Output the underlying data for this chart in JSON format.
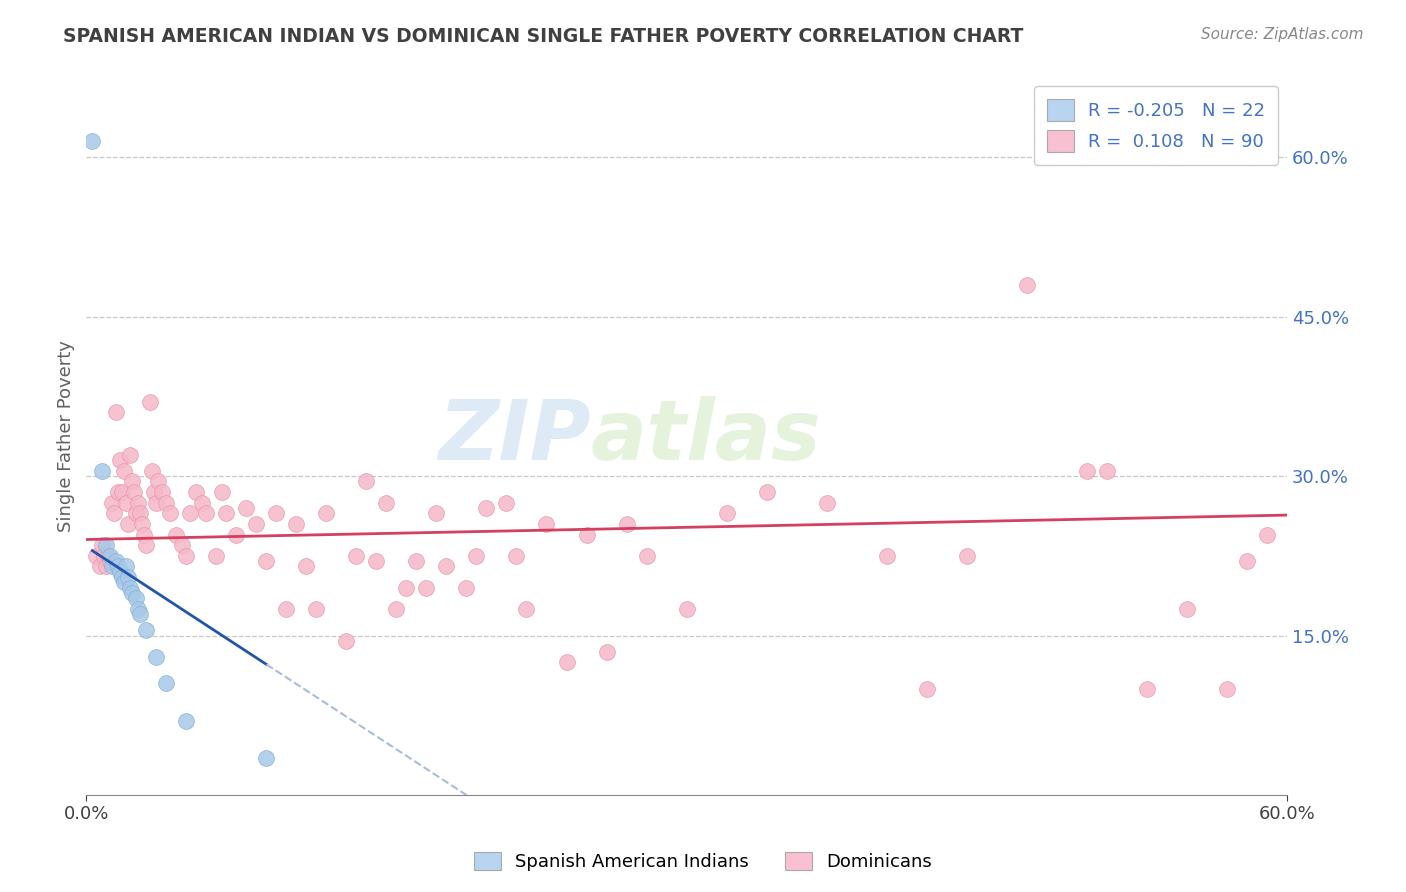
{
  "title": "SPANISH AMERICAN INDIAN VS DOMINICAN SINGLE FATHER POVERTY CORRELATION CHART",
  "source": "Source: ZipAtlas.com",
  "ylabel": "Single Father Poverty",
  "right_yticks": [
    "60.0%",
    "45.0%",
    "30.0%",
    "15.0%"
  ],
  "right_ytick_vals": [
    0.6,
    0.45,
    0.3,
    0.15
  ],
  "xmin": 0.0,
  "xmax": 0.6,
  "ymin": 0.0,
  "ymax": 0.675,
  "legend_labels": [
    "Spanish American Indians",
    "Dominicans"
  ],
  "r_blue": -0.205,
  "r_pink": 0.108,
  "n_blue": 22,
  "n_pink": 90,
  "watermark_zip": "ZIP",
  "watermark_atlas": "atlas",
  "blue_scatter": [
    [
      0.003,
      0.615
    ],
    [
      0.008,
      0.305
    ],
    [
      0.01,
      0.235
    ],
    [
      0.012,
      0.225
    ],
    [
      0.013,
      0.215
    ],
    [
      0.015,
      0.22
    ],
    [
      0.016,
      0.215
    ],
    [
      0.017,
      0.21
    ],
    [
      0.018,
      0.205
    ],
    [
      0.019,
      0.2
    ],
    [
      0.02,
      0.215
    ],
    [
      0.021,
      0.205
    ],
    [
      0.022,
      0.195
    ],
    [
      0.023,
      0.19
    ],
    [
      0.025,
      0.185
    ],
    [
      0.026,
      0.175
    ],
    [
      0.027,
      0.17
    ],
    [
      0.03,
      0.155
    ],
    [
      0.035,
      0.13
    ],
    [
      0.04,
      0.105
    ],
    [
      0.05,
      0.07
    ],
    [
      0.09,
      0.035
    ]
  ],
  "pink_scatter": [
    [
      0.005,
      0.225
    ],
    [
      0.007,
      0.215
    ],
    [
      0.008,
      0.235
    ],
    [
      0.009,
      0.225
    ],
    [
      0.01,
      0.215
    ],
    [
      0.011,
      0.225
    ],
    [
      0.012,
      0.22
    ],
    [
      0.013,
      0.275
    ],
    [
      0.014,
      0.265
    ],
    [
      0.015,
      0.36
    ],
    [
      0.016,
      0.285
    ],
    [
      0.017,
      0.315
    ],
    [
      0.018,
      0.285
    ],
    [
      0.019,
      0.305
    ],
    [
      0.02,
      0.275
    ],
    [
      0.021,
      0.255
    ],
    [
      0.022,
      0.32
    ],
    [
      0.023,
      0.295
    ],
    [
      0.024,
      0.285
    ],
    [
      0.025,
      0.265
    ],
    [
      0.026,
      0.275
    ],
    [
      0.027,
      0.265
    ],
    [
      0.028,
      0.255
    ],
    [
      0.029,
      0.245
    ],
    [
      0.03,
      0.235
    ],
    [
      0.032,
      0.37
    ],
    [
      0.033,
      0.305
    ],
    [
      0.034,
      0.285
    ],
    [
      0.035,
      0.275
    ],
    [
      0.036,
      0.295
    ],
    [
      0.038,
      0.285
    ],
    [
      0.04,
      0.275
    ],
    [
      0.042,
      0.265
    ],
    [
      0.045,
      0.245
    ],
    [
      0.048,
      0.235
    ],
    [
      0.05,
      0.225
    ],
    [
      0.052,
      0.265
    ],
    [
      0.055,
      0.285
    ],
    [
      0.058,
      0.275
    ],
    [
      0.06,
      0.265
    ],
    [
      0.065,
      0.225
    ],
    [
      0.068,
      0.285
    ],
    [
      0.07,
      0.265
    ],
    [
      0.075,
      0.245
    ],
    [
      0.08,
      0.27
    ],
    [
      0.085,
      0.255
    ],
    [
      0.09,
      0.22
    ],
    [
      0.095,
      0.265
    ],
    [
      0.1,
      0.175
    ],
    [
      0.105,
      0.255
    ],
    [
      0.11,
      0.215
    ],
    [
      0.115,
      0.175
    ],
    [
      0.12,
      0.265
    ],
    [
      0.13,
      0.145
    ],
    [
      0.135,
      0.225
    ],
    [
      0.14,
      0.295
    ],
    [
      0.145,
      0.22
    ],
    [
      0.15,
      0.275
    ],
    [
      0.155,
      0.175
    ],
    [
      0.16,
      0.195
    ],
    [
      0.165,
      0.22
    ],
    [
      0.17,
      0.195
    ],
    [
      0.175,
      0.265
    ],
    [
      0.18,
      0.215
    ],
    [
      0.19,
      0.195
    ],
    [
      0.195,
      0.225
    ],
    [
      0.2,
      0.27
    ],
    [
      0.21,
      0.275
    ],
    [
      0.215,
      0.225
    ],
    [
      0.22,
      0.175
    ],
    [
      0.23,
      0.255
    ],
    [
      0.24,
      0.125
    ],
    [
      0.25,
      0.245
    ],
    [
      0.26,
      0.135
    ],
    [
      0.27,
      0.255
    ],
    [
      0.28,
      0.225
    ],
    [
      0.3,
      0.175
    ],
    [
      0.32,
      0.265
    ],
    [
      0.34,
      0.285
    ],
    [
      0.37,
      0.275
    ],
    [
      0.4,
      0.225
    ],
    [
      0.42,
      0.1
    ],
    [
      0.44,
      0.225
    ],
    [
      0.47,
      0.48
    ],
    [
      0.5,
      0.305
    ],
    [
      0.51,
      0.305
    ],
    [
      0.53,
      0.1
    ],
    [
      0.55,
      0.175
    ],
    [
      0.57,
      0.1
    ],
    [
      0.58,
      0.22
    ],
    [
      0.59,
      0.245
    ]
  ],
  "scatter_size": 130,
  "blue_color": "#a8c8e8",
  "blue_edge_color": "#7aadd4",
  "pink_color": "#f5b8c8",
  "pink_edge_color": "#e890a8",
  "blue_line_color": "#2255aa",
  "blue_dash_color": "#aabbdd",
  "pink_line_color": "#d44060",
  "grid_color": "#c8c8c8",
  "background_color": "#ffffff",
  "title_color": "#404040",
  "source_color": "#888888",
  "right_axis_color": "#4472c4",
  "legend_box_blue": "#b8d4f0",
  "legend_box_pink": "#f8c0d0"
}
